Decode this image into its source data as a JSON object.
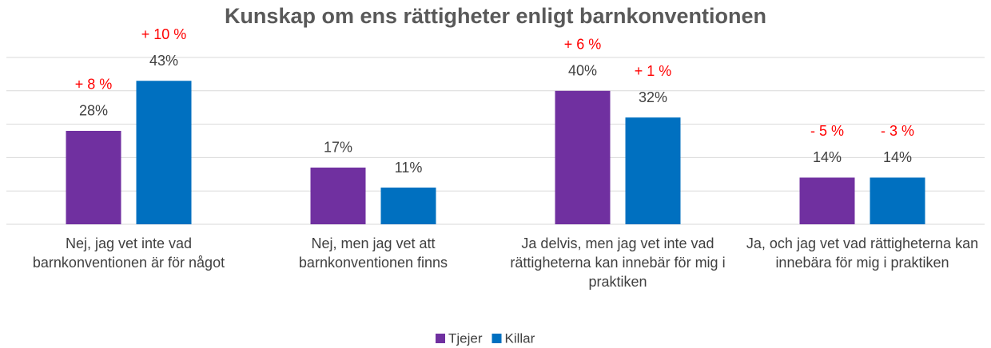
{
  "chart_data": {
    "type": "bar",
    "title": "Kunskap om ens rättigheter enligt barnkonventionen",
    "categories": [
      "Nej, jag vet inte vad barnkonventionen är för något",
      "Nej, men jag vet att barnkonventionen finns",
      "Ja delvis, men jag vet inte vad rättigheterna kan innebär för mig i praktiken",
      "Ja, och jag vet vad rättigheterna kan innebära för mig i praktiken"
    ],
    "series": [
      {
        "name": "Tjejer",
        "color": "#7030a0",
        "values": [
          28,
          17,
          40,
          14
        ],
        "value_labels": [
          "28%",
          "17%",
          "40%",
          "14%"
        ],
        "annotations": [
          "+ 8 %",
          "",
          "+ 6 %",
          "- 5 %"
        ]
      },
      {
        "name": "Killar",
        "color": "#0070c0",
        "values": [
          43,
          11,
          32,
          14
        ],
        "value_labels": [
          "43%",
          "11%",
          "32%",
          "14%"
        ],
        "annotations": [
          "+ 10 %",
          "",
          "+ 1 %",
          "- 3 %"
        ]
      }
    ],
    "ylim": [
      0,
      50
    ],
    "yticks": [
      0,
      10,
      20,
      30,
      40,
      50
    ],
    "grid": true,
    "legend": "bottom"
  }
}
